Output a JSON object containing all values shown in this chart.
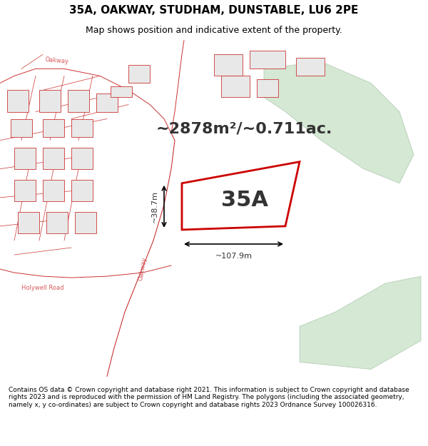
{
  "title_line1": "35A, OAKWAY, STUDHAM, DUNSTABLE, LU6 2PE",
  "title_line2": "Map shows position and indicative extent of the property.",
  "footer_text": "Contains OS data © Crown copyright and database right 2021. This information is subject to Crown copyright and database rights 2023 and is reproduced with the permission of HM Land Registry. The polygons (including the associated geometry, namely x, y co-ordinates) are subject to Crown copyright and database rights 2023 Ordnance Survey 100026316.",
  "area_label": "~2878m²/~0.711ac.",
  "property_label": "35A",
  "dim_width": "~107.9m",
  "dim_height": "~38.7m",
  "map_bg": "#f5f5f5",
  "footer_bg": "#ffffff",
  "header_bg": "#ffffff",
  "property_fill": "none",
  "property_edge": "#cc0000",
  "road_color": "#cc3333",
  "building_fill": "#e8e8e8",
  "building_edge": "#cc3333",
  "green_fill": "#d4e8d4",
  "green_edge": "#b0c8b0"
}
